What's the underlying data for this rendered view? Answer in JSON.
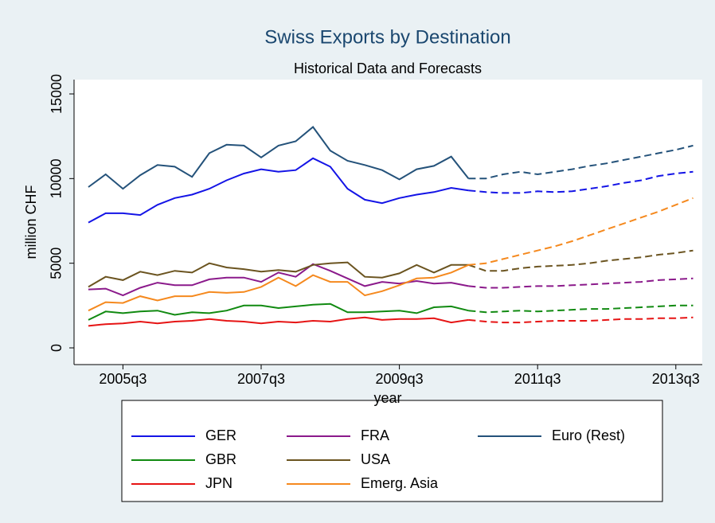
{
  "chart_data": {
    "type": "line",
    "title": "Swiss Exports by Destination",
    "subtitle": "Historical Data and Forecasts",
    "x_label": "year",
    "y_label": "million CHF",
    "categories": [
      "2005q1",
      "2005q2",
      "2005q3",
      "2005q4",
      "2006q1",
      "2006q2",
      "2006q3",
      "2006q4",
      "2007q1",
      "2007q2",
      "2007q3",
      "2007q4",
      "2008q1",
      "2008q2",
      "2008q3",
      "2008q4",
      "2009q1",
      "2009q2",
      "2009q3",
      "2009q4",
      "2010q1",
      "2010q2",
      "2010q3",
      "2010q4",
      "2011q1",
      "2011q2",
      "2011q3",
      "2011q4",
      "2012q1",
      "2012q2",
      "2012q3",
      "2012q4",
      "2013q1",
      "2013q2",
      "2013q3",
      "2013q4"
    ],
    "xticks": [
      "2005q3",
      "2007q3",
      "2009q3",
      "2011q3",
      "2013q3"
    ],
    "ylim": [
      0,
      15000
    ],
    "yticks": [
      0,
      5000,
      10000,
      15000
    ],
    "series": [
      {
        "name": "GER",
        "color": "#1414e6",
        "values": [
          7400,
          7950,
          7950,
          7850,
          8450,
          8850,
          9050,
          9400,
          9900,
          10300,
          10550,
          10400,
          10500,
          11200,
          10700,
          9400,
          8750,
          8550,
          8850,
          9050,
          9200,
          9450,
          9300,
          null,
          null,
          null,
          null,
          null,
          null,
          null,
          null,
          null,
          null,
          null,
          null,
          null
        ],
        "forecast": [
          null,
          null,
          null,
          null,
          null,
          null,
          null,
          null,
          null,
          null,
          null,
          null,
          null,
          null,
          null,
          null,
          null,
          null,
          null,
          null,
          null,
          null,
          9300,
          9200,
          9150,
          9150,
          9250,
          9200,
          9250,
          9400,
          9550,
          9750,
          9900,
          10150,
          10300,
          10400
        ]
      },
      {
        "name": "FRA",
        "color": "#8b1a8b",
        "values": [
          3450,
          3500,
          3100,
          3550,
          3850,
          3700,
          3700,
          4050,
          4150,
          4150,
          3900,
          4450,
          4200,
          4950,
          4550,
          4100,
          3650,
          3900,
          3800,
          3950,
          3800,
          3850,
          3650,
          null,
          null,
          null,
          null,
          null,
          null,
          null,
          null,
          null,
          null,
          null,
          null,
          null
        ],
        "forecast": [
          null,
          null,
          null,
          null,
          null,
          null,
          null,
          null,
          null,
          null,
          null,
          null,
          null,
          null,
          null,
          null,
          null,
          null,
          null,
          null,
          null,
          null,
          3650,
          3550,
          3550,
          3600,
          3650,
          3650,
          3700,
          3750,
          3800,
          3850,
          3900,
          4000,
          4050,
          4100
        ]
      },
      {
        "name": "Euro (Rest)",
        "color": "#24527a",
        "values": [
          9500,
          10250,
          9400,
          10200,
          10800,
          10700,
          10100,
          11500,
          12000,
          11950,
          11250,
          11950,
          12200,
          13050,
          11650,
          11050,
          10800,
          10500,
          9950,
          10550,
          10750,
          11300,
          10000,
          null,
          null,
          null,
          null,
          null,
          null,
          null,
          null,
          null,
          null,
          null,
          null,
          null
        ],
        "forecast": [
          null,
          null,
          null,
          null,
          null,
          null,
          null,
          null,
          null,
          null,
          null,
          null,
          null,
          null,
          null,
          null,
          null,
          null,
          null,
          null,
          null,
          null,
          10000,
          10000,
          10250,
          10400,
          10250,
          10400,
          10550,
          10750,
          10900,
          11100,
          11300,
          11500,
          11700,
          11950
        ]
      },
      {
        "name": "GBR",
        "color": "#118a11",
        "values": [
          1650,
          2150,
          2050,
          2150,
          2200,
          1950,
          2100,
          2050,
          2200,
          2500,
          2500,
          2350,
          2450,
          2550,
          2600,
          2100,
          2100,
          2150,
          2200,
          2050,
          2400,
          2450,
          2200,
          null,
          null,
          null,
          null,
          null,
          null,
          null,
          null,
          null,
          null,
          null,
          null,
          null
        ],
        "forecast": [
          null,
          null,
          null,
          null,
          null,
          null,
          null,
          null,
          null,
          null,
          null,
          null,
          null,
          null,
          null,
          null,
          null,
          null,
          null,
          null,
          null,
          null,
          2200,
          2100,
          2150,
          2200,
          2150,
          2200,
          2250,
          2300,
          2300,
          2350,
          2400,
          2450,
          2500,
          2500
        ]
      },
      {
        "name": "USA",
        "color": "#6b5420",
        "values": [
          3600,
          4200,
          4000,
          4500,
          4300,
          4550,
          4450,
          5000,
          4750,
          4650,
          4500,
          4600,
          4500,
          4900,
          5000,
          5050,
          4200,
          4150,
          4400,
          4900,
          4450,
          4900,
          4900,
          null,
          null,
          null,
          null,
          null,
          null,
          null,
          null,
          null,
          null,
          null,
          null,
          null
        ],
        "forecast": [
          null,
          null,
          null,
          null,
          null,
          null,
          null,
          null,
          null,
          null,
          null,
          null,
          null,
          null,
          null,
          null,
          null,
          null,
          null,
          null,
          null,
          null,
          4900,
          4550,
          4550,
          4700,
          4800,
          4850,
          4900,
          5000,
          5150,
          5250,
          5350,
          5500,
          5600,
          5750
        ]
      },
      {
        "name": "JPN",
        "color": "#e61414",
        "values": [
          1300,
          1400,
          1450,
          1550,
          1450,
          1550,
          1600,
          1700,
          1600,
          1550,
          1450,
          1550,
          1500,
          1600,
          1550,
          1700,
          1800,
          1650,
          1700,
          1700,
          1750,
          1500,
          1650,
          null,
          null,
          null,
          null,
          null,
          null,
          null,
          null,
          null,
          null,
          null,
          null,
          null
        ],
        "forecast": [
          null,
          null,
          null,
          null,
          null,
          null,
          null,
          null,
          null,
          null,
          null,
          null,
          null,
          null,
          null,
          null,
          null,
          null,
          null,
          null,
          null,
          null,
          1650,
          1550,
          1500,
          1500,
          1550,
          1600,
          1600,
          1600,
          1650,
          1700,
          1700,
          1750,
          1750,
          1800
        ]
      },
      {
        "name": "Emerg. Asia",
        "color": "#f5891e",
        "values": [
          2200,
          2700,
          2650,
          3050,
          2800,
          3050,
          3050,
          3300,
          3250,
          3300,
          3600,
          4150,
          3650,
          4300,
          3900,
          3900,
          3100,
          3350,
          3700,
          4100,
          4150,
          4450,
          4900,
          null,
          null,
          null,
          null,
          null,
          null,
          null,
          null,
          null,
          null,
          null,
          null,
          null
        ],
        "forecast": [
          null,
          null,
          null,
          null,
          null,
          null,
          null,
          null,
          null,
          null,
          null,
          null,
          null,
          null,
          null,
          null,
          null,
          null,
          null,
          null,
          null,
          null,
          4900,
          5000,
          5250,
          5500,
          5750,
          6000,
          6300,
          6650,
          7000,
          7350,
          7700,
          8050,
          8450,
          8850
        ]
      }
    ]
  }
}
